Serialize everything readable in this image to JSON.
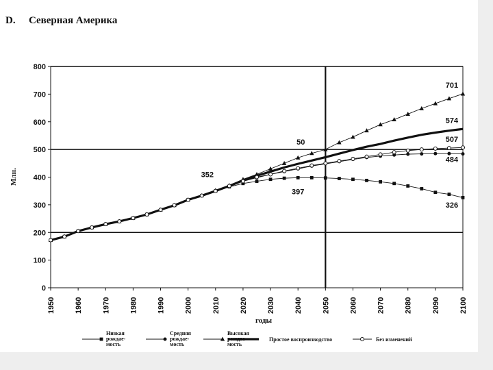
{
  "heading": {
    "letter": "D.",
    "title": "Северная Америка"
  },
  "colors": {
    "ink": "#111111",
    "frame": "#eeeeee"
  },
  "chart_data": {
    "type": "line",
    "title": "Северная Америка",
    "xlabel": "годы",
    "ylabel": "Млн.",
    "xlim": [
      1950,
      2100
    ],
    "ylim": [
      0,
      800
    ],
    "yticks": [
      "0",
      "100",
      "200",
      "300",
      "400",
      "500",
      "600",
      "700",
      "800"
    ],
    "xticks": [
      "1950",
      "1960",
      "1970",
      "1980",
      "1990",
      "2000",
      "2010",
      "2020",
      "2030",
      "2040",
      "2050",
      "2060",
      "2070",
      "2080",
      "2090",
      "2100"
    ],
    "grid": "major horizontal lines at 200, 500 and 800",
    "vline": 2050,
    "legend_position": "bottom",
    "series": [
      {
        "name": "Низкая рождаемость",
        "legend_lines": [
          "Низкая",
          "рождае-",
          "мость"
        ],
        "marker": "square",
        "x": [
          1950,
          1955,
          1960,
          1965,
          1970,
          1975,
          1980,
          1985,
          1990,
          1995,
          2000,
          2005,
          2010,
          2015,
          2020,
          2025,
          2030,
          2035,
          2040,
          2045,
          2050,
          2055,
          2060,
          2065,
          2070,
          2075,
          2080,
          2085,
          2090,
          2095,
          2100
        ],
        "y": [
          172,
          185,
          205,
          218,
          230,
          240,
          252,
          265,
          282,
          298,
          318,
          333,
          350,
          365,
          377,
          385,
          392,
          396,
          398,
          398,
          397,
          395,
          392,
          388,
          383,
          377,
          368,
          358,
          345,
          338,
          326
        ]
      },
      {
        "name": "Средняя рождаемость",
        "legend_lines": [
          "Средняя",
          "рождае-",
          "мость"
        ],
        "marker": "dot",
        "x": [
          1950,
          1955,
          1960,
          1965,
          1970,
          1975,
          1980,
          1985,
          1990,
          1995,
          2000,
          2005,
          2010,
          2015,
          2020,
          2025,
          2030,
          2035,
          2040,
          2045,
          2050,
          2055,
          2060,
          2065,
          2070,
          2075,
          2080,
          2085,
          2090,
          2095,
          2100
        ],
        "y": [
          172,
          185,
          205,
          218,
          230,
          240,
          252,
          265,
          282,
          298,
          318,
          333,
          350,
          368,
          385,
          398,
          410,
          420,
          430,
          440,
          448,
          456,
          464,
          471,
          476,
          480,
          483,
          484,
          485,
          485,
          484
        ]
      },
      {
        "name": "Высокая рождаемость",
        "legend_lines": [
          "Высокая",
          "рождае-",
          "мость"
        ],
        "marker": "triangle",
        "x": [
          1950,
          1955,
          1960,
          1965,
          1970,
          1975,
          1980,
          1985,
          1990,
          1995,
          2000,
          2005,
          2010,
          2015,
          2020,
          2025,
          2030,
          2035,
          2040,
          2045,
          2050,
          2055,
          2060,
          2065,
          2070,
          2075,
          2080,
          2085,
          2090,
          2095,
          2100
        ],
        "y": [
          172,
          185,
          205,
          218,
          230,
          240,
          252,
          265,
          282,
          298,
          318,
          333,
          352,
          370,
          392,
          410,
          430,
          450,
          470,
          486,
          500,
          525,
          545,
          568,
          590,
          608,
          628,
          648,
          666,
          684,
          701
        ]
      },
      {
        "name": "Простое воспроизводство",
        "legend_lines": [
          "Простое воспроизводство"
        ],
        "marker": "none",
        "thick": true,
        "x": [
          1950,
          1955,
          1960,
          1965,
          1970,
          1975,
          1980,
          1985,
          1990,
          1995,
          2000,
          2005,
          2010,
          2015,
          2020,
          2025,
          2030,
          2035,
          2040,
          2045,
          2050,
          2055,
          2060,
          2065,
          2070,
          2075,
          2080,
          2085,
          2090,
          2095,
          2100
        ],
        "y": [
          172,
          185,
          205,
          218,
          230,
          240,
          252,
          265,
          282,
          298,
          318,
          333,
          350,
          368,
          388,
          405,
          420,
          435,
          448,
          460,
          472,
          485,
          498,
          510,
          520,
          532,
          543,
          553,
          561,
          568,
          574
        ]
      },
      {
        "name": "Без изменений",
        "legend_lines": [
          "Без изменений"
        ],
        "marker": "circle-open",
        "x": [
          1950,
          1955,
          1960,
          1965,
          1970,
          1975,
          1980,
          1985,
          1990,
          1995,
          2000,
          2005,
          2010,
          2015,
          2020,
          2025,
          2030,
          2035,
          2040,
          2045,
          2050,
          2055,
          2060,
          2065,
          2070,
          2075,
          2080,
          2085,
          2090,
          2095,
          2100
        ],
        "y": [
          172,
          185,
          205,
          218,
          230,
          240,
          252,
          265,
          282,
          298,
          318,
          333,
          350,
          368,
          385,
          400,
          410,
          422,
          432,
          442,
          450,
          458,
          466,
          474,
          482,
          490,
          496,
          500,
          503,
          505,
          507
        ]
      }
    ],
    "annotations": [
      {
        "text": "701",
        "x": 2096,
        "y": 723
      },
      {
        "text": "574",
        "x": 2096,
        "y": 596
      },
      {
        "text": "507",
        "x": 2096,
        "y": 528
      },
      {
        "text": "484",
        "x": 2096,
        "y": 455
      },
      {
        "text": "50",
        "x": 2041,
        "y": 518
      },
      {
        "text": "352",
        "x": 2007,
        "y": 400
      },
      {
        "text": "397",
        "x": 2040,
        "y": 338
      },
      {
        "text": "326",
        "x": 2096,
        "y": 290
      }
    ]
  }
}
